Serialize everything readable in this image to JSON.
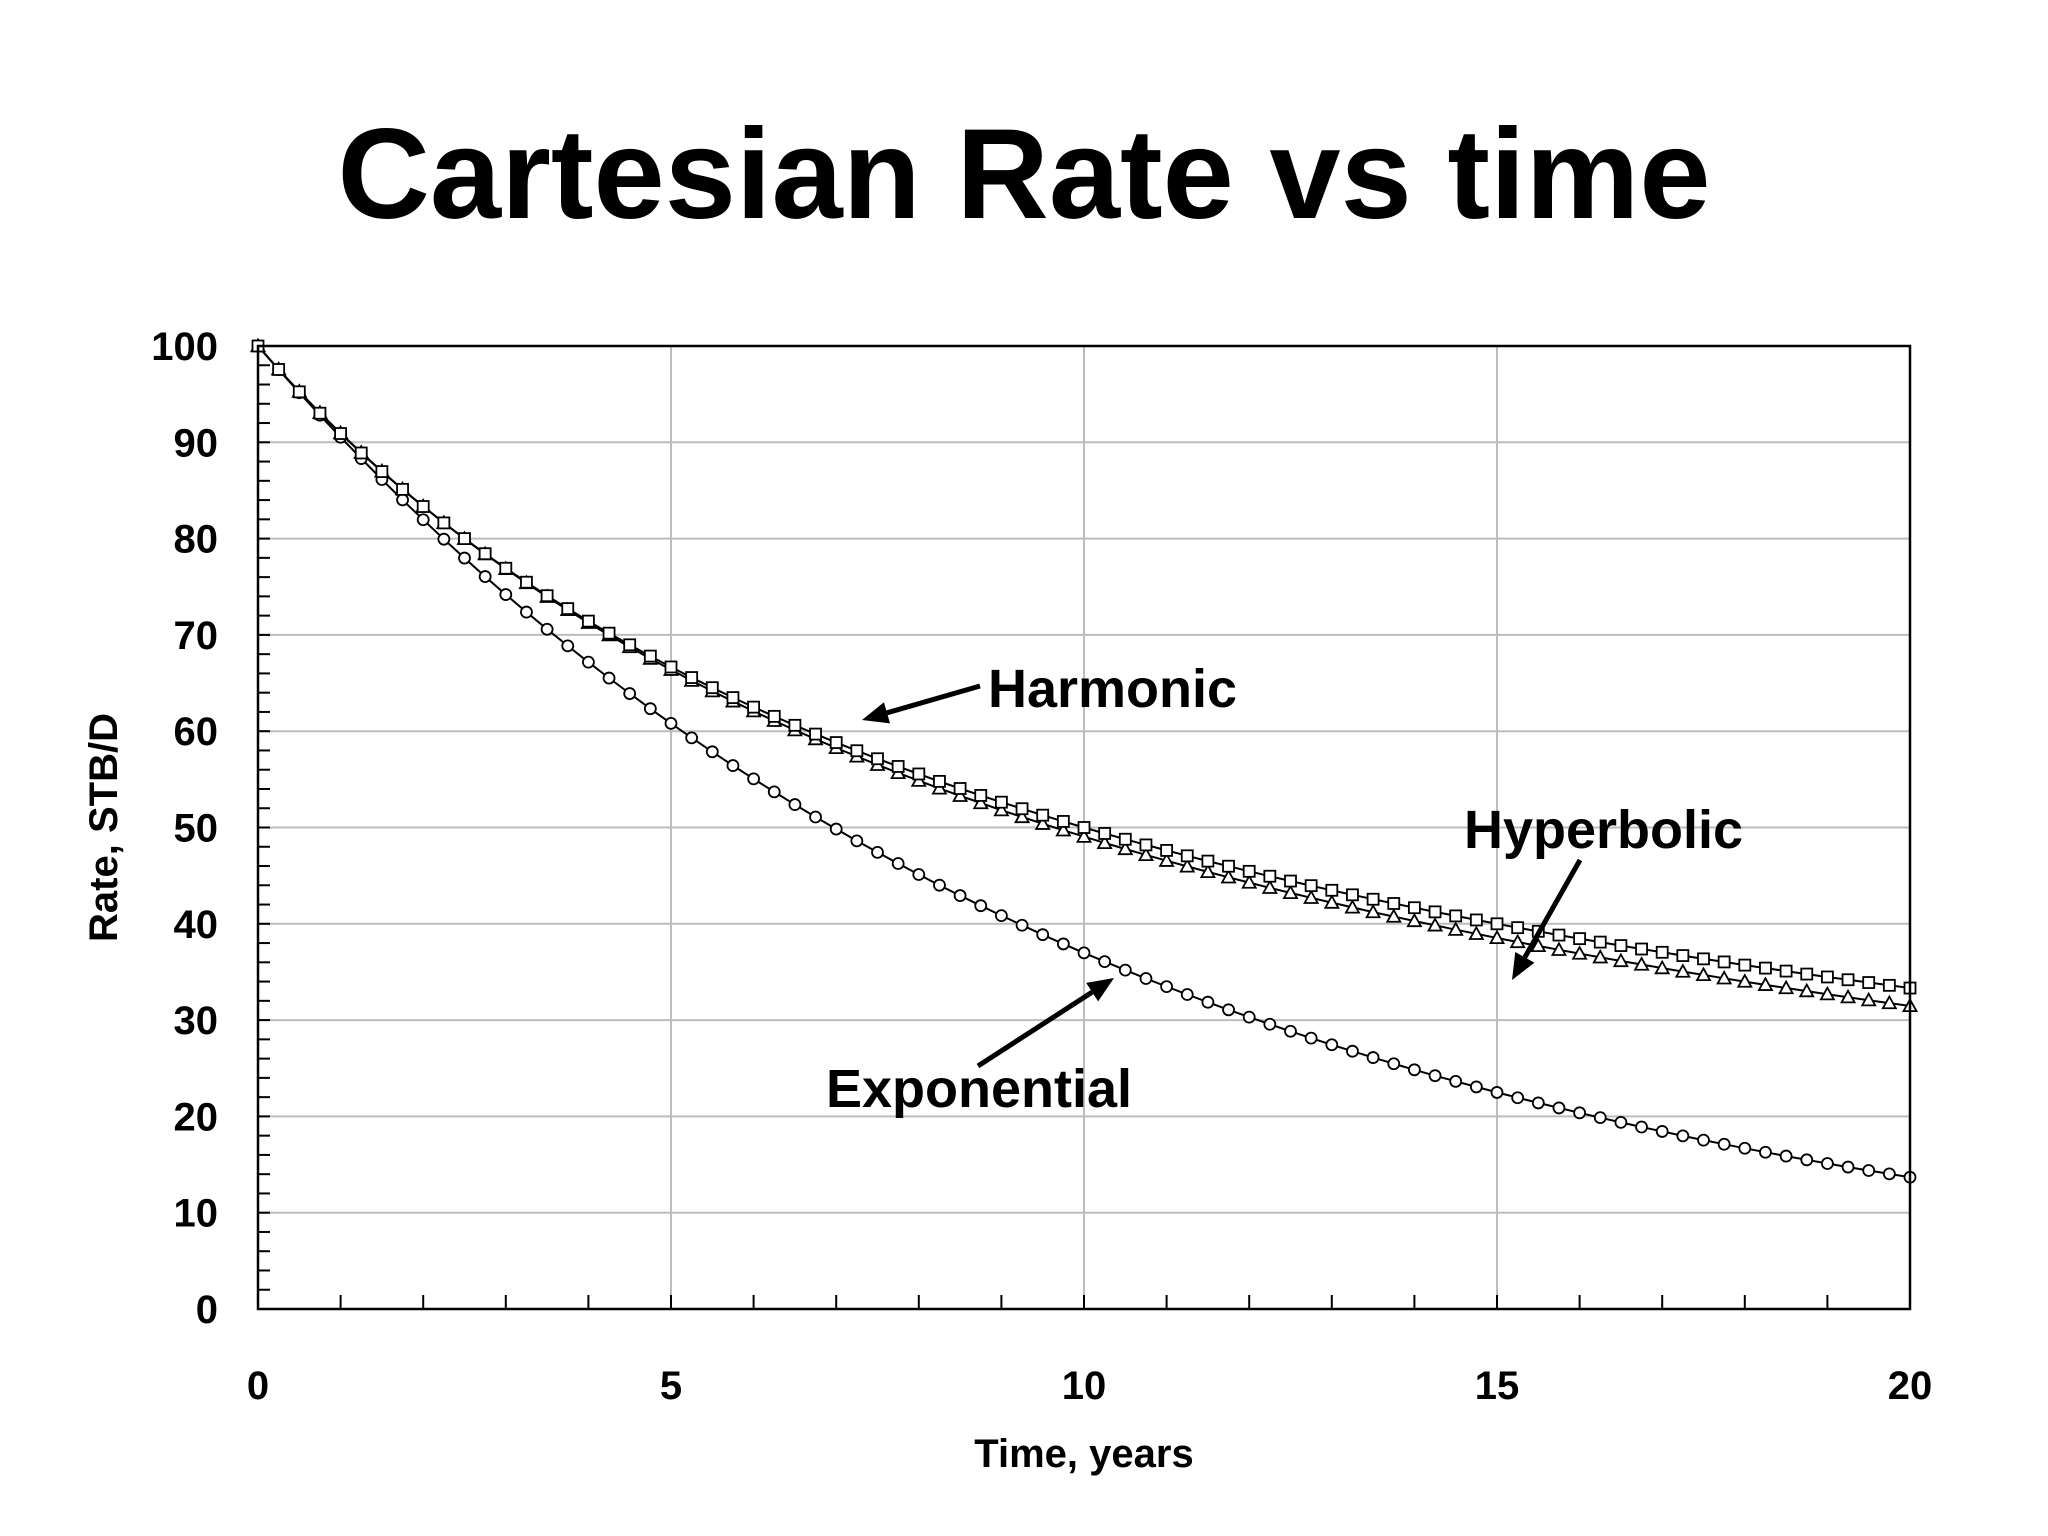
{
  "chart_data": {
    "type": "line",
    "title": "Cartesian Rate vs time",
    "xlabel": "Time, years",
    "ylabel": "Rate, STB/D",
    "xlim": [
      0,
      20
    ],
    "ylim": [
      0,
      100
    ],
    "x_ticks": [
      "0",
      "5",
      "10",
      "15",
      "20"
    ],
    "y_ticks": [
      "0",
      "10",
      "20",
      "30",
      "40",
      "50",
      "60",
      "70",
      "80",
      "90",
      "100"
    ],
    "grid": true,
    "legend": "none",
    "x": [
      0,
      0.25,
      0.5,
      0.75,
      1,
      1.25,
      1.5,
      1.75,
      2,
      2.25,
      2.5,
      2.75,
      3,
      3.25,
      3.5,
      3.75,
      4,
      4.25,
      4.5,
      4.75,
      5,
      5.25,
      5.5,
      5.75,
      6,
      6.25,
      6.5,
      6.75,
      7,
      7.25,
      7.5,
      7.75,
      8,
      8.25,
      8.5,
      8.75,
      9,
      9.25,
      9.5,
      9.75,
      10,
      10.25,
      10.5,
      10.75,
      11,
      11.25,
      11.5,
      11.75,
      12,
      12.25,
      12.5,
      12.75,
      13,
      13.25,
      13.5,
      13.75,
      14,
      14.25,
      14.5,
      14.75,
      15,
      15.25,
      15.5,
      15.75,
      16,
      16.25,
      16.5,
      16.75,
      17,
      17.25,
      17.5,
      17.75,
      18,
      18.25,
      18.5,
      18.75,
      19,
      19.25,
      19.5,
      19.75,
      20
    ],
    "series": [
      {
        "name": "Exponential",
        "marker": "circle",
        "values": [
          100.0,
          97.55,
          95.15,
          92.81,
          90.53,
          88.31,
          86.14,
          84.02,
          81.96,
          79.94,
          77.98,
          76.06,
          74.19,
          72.37,
          70.59,
          68.86,
          67.17,
          65.52,
          63.91,
          62.34,
          60.81,
          59.31,
          57.86,
          56.43,
          55.05,
          53.7,
          52.38,
          51.09,
          49.84,
          48.61,
          47.42,
          46.26,
          45.12,
          44.01,
          42.93,
          41.88,
          40.85,
          39.85,
          38.87,
          37.91,
          36.98,
          36.07,
          35.19,
          34.32,
          33.48,
          32.66,
          31.86,
          31.07,
          30.31,
          29.57,
          28.84,
          28.13,
          27.44,
          26.77,
          26.11,
          25.47,
          24.84,
          24.23,
          23.64,
          23.06,
          22.49,
          21.94,
          21.4,
          20.88,
          20.37,
          19.87,
          19.38,
          18.9,
          18.44,
          17.98,
          17.54,
          17.11,
          16.69,
          16.28,
          15.88,
          15.49,
          15.11,
          14.74,
          14.38,
          14.03,
          13.68
        ]
      },
      {
        "name": "Hyperbolic",
        "marker": "triangle",
        "values": [
          100.0,
          97.58,
          95.27,
          93.06,
          90.95,
          88.93,
          86.99,
          85.13,
          83.35,
          81.63,
          79.98,
          78.39,
          76.86,
          75.39,
          73.96,
          72.59,
          71.26,
          69.98,
          68.74,
          67.54,
          66.38,
          65.25,
          64.16,
          63.1,
          62.08,
          61.08,
          60.11,
          59.18,
          58.26,
          57.38,
          56.51,
          55.67,
          54.86,
          54.06,
          53.29,
          52.54,
          51.8,
          51.09,
          50.39,
          49.71,
          49.05,
          48.4,
          47.77,
          47.15,
          46.55,
          45.96,
          45.39,
          44.83,
          44.28,
          43.74,
          43.21,
          42.7,
          42.2,
          41.7,
          41.22,
          40.75,
          40.29,
          39.84,
          39.39,
          38.96,
          38.53,
          38.11,
          37.7,
          37.3,
          36.91,
          36.52,
          36.14,
          35.77,
          35.4,
          35.04,
          34.69,
          34.34,
          34.0,
          33.66,
          33.33,
          33.01,
          32.69,
          32.38,
          32.07,
          31.77,
          31.47
        ]
      },
      {
        "name": "Harmonic",
        "marker": "square",
        "values": [
          100.0,
          97.56,
          95.24,
          93.02,
          90.91,
          88.89,
          86.96,
          85.11,
          83.33,
          81.63,
          80.0,
          78.43,
          76.92,
          75.47,
          74.07,
          72.73,
          71.43,
          70.18,
          68.97,
          67.8,
          66.67,
          65.57,
          64.52,
          63.49,
          62.5,
          61.54,
          60.61,
          59.7,
          58.82,
          57.97,
          57.14,
          56.34,
          55.56,
          54.79,
          54.05,
          53.33,
          52.63,
          51.95,
          51.28,
          50.63,
          50.0,
          49.38,
          48.78,
          48.19,
          47.62,
          47.06,
          46.51,
          45.98,
          45.45,
          44.94,
          44.44,
          43.96,
          43.48,
          43.01,
          42.55,
          42.11,
          41.67,
          41.24,
          40.82,
          40.4,
          40.0,
          39.6,
          39.22,
          38.83,
          38.46,
          38.1,
          37.74,
          37.38,
          37.04,
          36.7,
          36.36,
          36.04,
          35.71,
          35.4,
          35.09,
          34.78,
          34.48,
          34.19,
          33.9,
          33.61,
          33.33
        ]
      }
    ],
    "annotations": [
      {
        "text": "Harmonic"
      },
      {
        "text": "Hyperbolic"
      },
      {
        "text": "Exponential"
      }
    ]
  }
}
